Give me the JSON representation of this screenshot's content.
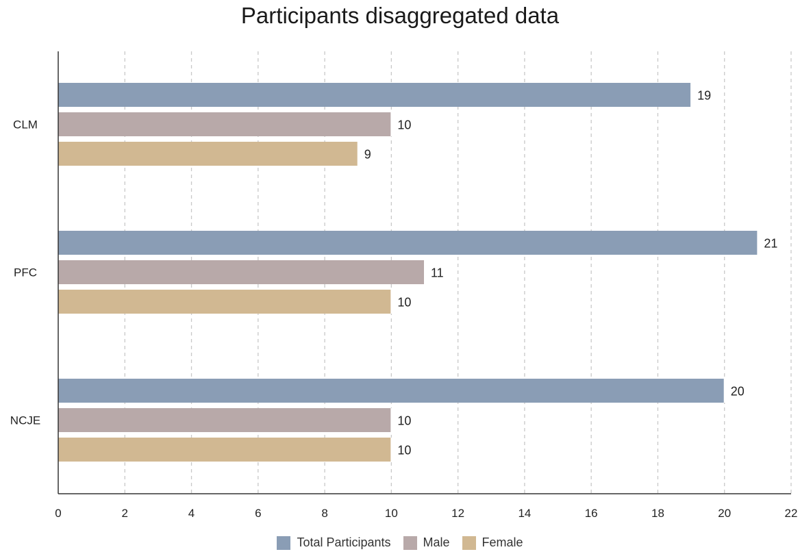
{
  "chart_data": {
    "type": "bar",
    "orientation": "horizontal",
    "title": "Participants disaggregated data",
    "xlabel": "",
    "ylabel": "",
    "categories": [
      "CLM",
      "PFC",
      "NCJE"
    ],
    "series": [
      {
        "name": "Total Participants",
        "color": "#8a9db5",
        "values": [
          19,
          21,
          20
        ]
      },
      {
        "name": "Male",
        "color": "#b8a9a9",
        "values": [
          10,
          11,
          10
        ]
      },
      {
        "name": "Female",
        "color": "#d1b892",
        "values": [
          9,
          10,
          10
        ]
      }
    ],
    "xlim": [
      0,
      22
    ],
    "xticks": [
      0,
      2,
      4,
      6,
      8,
      10,
      12,
      14,
      16,
      18,
      20,
      22
    ],
    "grid": "vertical dashed",
    "legend": "bottom-center",
    "data_labels": true
  }
}
